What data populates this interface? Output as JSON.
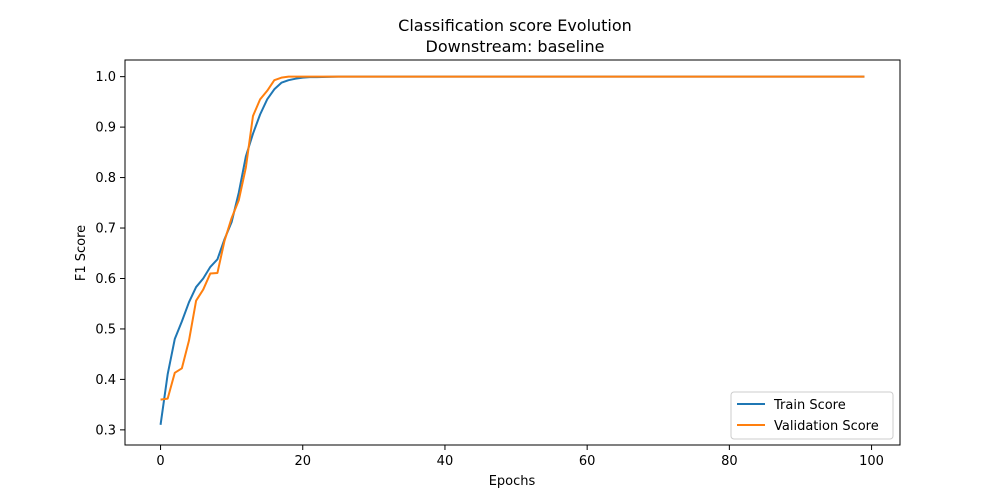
{
  "chart_data": {
    "type": "line",
    "title": "Classification score Evolution",
    "subtitle": "Downstream: baseline",
    "xlabel": "Epochs",
    "ylabel": "F1 Score",
    "xlim": [
      -5,
      104
    ],
    "ylim": [
      0.27,
      1.033
    ],
    "xticks": [
      0,
      20,
      40,
      60,
      80,
      100
    ],
    "yticks": [
      0.3,
      0.4,
      0.5,
      0.6,
      0.7,
      0.8,
      0.9,
      1.0
    ],
    "xtick_labels": [
      "0",
      "20",
      "40",
      "60",
      "80",
      "100"
    ],
    "ytick_labels": [
      "0.3",
      "0.4",
      "0.5",
      "0.6",
      "0.7",
      "0.8",
      "0.9",
      "1.0"
    ],
    "grid": false,
    "legend_position": "bottom-right",
    "series": [
      {
        "name": "Train Score",
        "color": "#1f77b4",
        "x": [
          0,
          1,
          2,
          3,
          4,
          5,
          6,
          7,
          8,
          9,
          10,
          11,
          12,
          13,
          14,
          15,
          16,
          17,
          18,
          19,
          20,
          21,
          22,
          25,
          30,
          40,
          50,
          60,
          70,
          80,
          90,
          99
        ],
        "y": [
          0.31,
          0.41,
          0.48,
          0.515,
          0.553,
          0.583,
          0.6,
          0.623,
          0.638,
          0.678,
          0.712,
          0.77,
          0.842,
          0.887,
          0.925,
          0.955,
          0.975,
          0.988,
          0.993,
          0.996,
          0.998,
          0.999,
          0.999,
          1.0,
          1.0,
          1.0,
          1.0,
          1.0,
          1.0,
          1.0,
          1.0,
          1.0
        ]
      },
      {
        "name": "Validation Score",
        "color": "#ff7f0e",
        "x": [
          0,
          1,
          2,
          3,
          4,
          5,
          6,
          7,
          8,
          9,
          10,
          11,
          12,
          13,
          14,
          15,
          16,
          17,
          18,
          19,
          20,
          22,
          25,
          30,
          40,
          50,
          60,
          70,
          80,
          90,
          99
        ],
        "y": [
          0.36,
          0.362,
          0.413,
          0.422,
          0.477,
          0.556,
          0.578,
          0.61,
          0.611,
          0.675,
          0.72,
          0.755,
          0.82,
          0.922,
          0.955,
          0.972,
          0.993,
          0.998,
          1.0,
          1.0,
          1.0,
          1.0,
          1.0,
          1.0,
          1.0,
          1.0,
          1.0,
          1.0,
          1.0,
          1.0,
          1.0
        ]
      }
    ]
  }
}
